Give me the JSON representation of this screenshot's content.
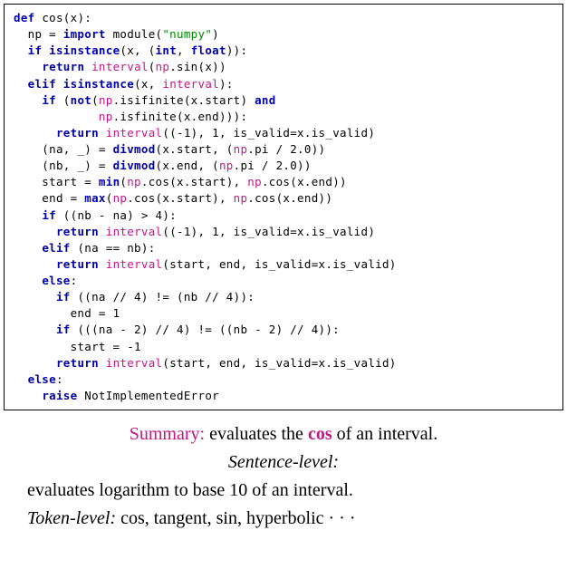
{
  "colors": {
    "keyword": "#0000aa",
    "function": "#c71585",
    "string": "#008800",
    "border": "#000000",
    "background": "#ffffff",
    "text": "#000000"
  },
  "typography": {
    "code_font": "DejaVu Sans Mono",
    "code_fontsize": 12.5,
    "caption_font": "Times New Roman",
    "caption_fontsize": 20
  },
  "code_tokens": {
    "l1_def": "def",
    "l1_fn": "cos(x):",
    "l2_np": "  np = ",
    "l2_import": "import",
    "l2_module": " module(",
    "l2_str": "\"numpy\"",
    "l2_close": ")",
    "l3_if": "  if",
    "l3_isinst": " isinstance",
    "l3_paren": "(x, (",
    "l3_int": "int",
    "l3_comma": ", ",
    "l3_float": "float",
    "l3_close": ")):",
    "l4_sp": "    ",
    "l4_return": "return",
    "l4_sp2": " ",
    "l4_interval": "interval",
    "l4_open": "(",
    "l4_np": "np",
    "l4_sin": ".sin(x))",
    "l5_sp": "  ",
    "l5_elif": "elif",
    "l5_sp2": " ",
    "l5_isinst": "isinstance",
    "l5_open": "(x, ",
    "l5_interval": "interval",
    "l5_close": "):",
    "l6_sp": "    ",
    "l6_if": "if",
    "l6_open": " (",
    "l6_not": "not",
    "l6_open2": "(",
    "l6_np": "np",
    "l6_isif": ".isifinite(x.start) ",
    "l6_and": "and",
    "l7_sp": "            ",
    "l7_np": "np",
    "l7_isfin": ".isfinite(x.end))):",
    "l8_sp": "      ",
    "l8_return": "return",
    "l8_sp2": " ",
    "l8_interval": "interval",
    "l8_args": "((-1), 1, is_valid=x.is_valid)",
    "l9_sp": "    (na, _) = ",
    "l9_divmod": "divmod",
    "l9_open": "(x.start, (",
    "l9_np": "np",
    "l9_pi": ".pi / 2.0))",
    "l10_sp": "    (nb, _) = ",
    "l10_divmod": "divmod",
    "l10_open": "(x.end, (",
    "l10_np": "np",
    "l10_pi": ".pi / 2.0))",
    "l11_sp": "    start = ",
    "l11_min": "min",
    "l11_open": "(",
    "l11_np1": "np",
    "l11_cos1": ".cos(x.start), ",
    "l11_np2": "np",
    "l11_cos2": ".cos(x.end))",
    "l12_sp": "    end = ",
    "l12_max": "max",
    "l12_open": "(",
    "l12_np1": "np",
    "l12_cos1": ".cos(x.start), ",
    "l12_np2": "np",
    "l12_cos2": ".cos(x.end))",
    "l13_sp": "    ",
    "l13_if": "if",
    "l13_rest": " ((nb - na) > 4):",
    "l14_sp": "      ",
    "l14_return": "return",
    "l14_sp2": " ",
    "l14_interval": "interval",
    "l14_args": "((-1), 1, is_valid=x.is_valid)",
    "l15_sp": "    ",
    "l15_elif": "elif",
    "l15_rest": " (na == nb):",
    "l16_sp": "      ",
    "l16_return": "return",
    "l16_sp2": " ",
    "l16_interval": "interval",
    "l16_args": "(start, end, is_valid=x.is_valid)",
    "l17_sp": "    ",
    "l17_else": "else",
    "l17_colon": ":",
    "l18_sp": "      ",
    "l18_if": "if",
    "l18_rest": " ((na // 4) != (nb // 4)):",
    "l19": "        end = 1",
    "l20_sp": "      ",
    "l20_if": "if",
    "l20_rest": " (((na - 2) // 4) != ((nb - 2) // 4)):",
    "l21": "        start = -1",
    "l22_sp": "      ",
    "l22_return": "return",
    "l22_sp2": " ",
    "l22_interval": "interval",
    "l22_args": "(start, end, is_valid=x.is_valid)",
    "l23_sp": "  ",
    "l23_else": "else",
    "l23_colon": ":",
    "l24_sp": "    ",
    "l24_raise": "raise",
    "l24_err": " NotImplementedError"
  },
  "caption": {
    "summary_label": "Summary:",
    "summary_text_before": " evaluates the ",
    "summary_cos": "cos",
    "summary_text_after": " of an interval.",
    "sentence_level_label": "Sentence-level:",
    "sentence_level_text": "evaluates logarithm to base 10 of an interval.",
    "token_level_label": "Token-level:",
    "token_level_text": " cos, tangent, sin, hyperbolic · · ·"
  }
}
